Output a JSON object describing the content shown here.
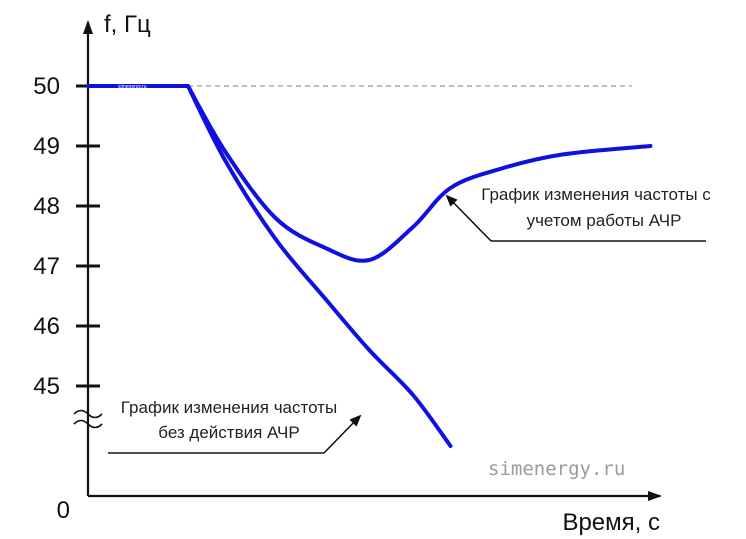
{
  "chart_data": {
    "type": "line",
    "ylabel": "f, Гц",
    "xlabel": "Время, с",
    "origin_label": "0",
    "y_ticks": [
      50,
      49,
      48,
      47,
      46,
      45
    ],
    "ylim": [
      44,
      51
    ],
    "reference_line_value": 50,
    "series": [
      {
        "label_lines": [
          "График изменения частоты с",
          "учетом работы АЧР"
        ],
        "color": "#1010e0",
        "x": [
          0.0,
          1.6,
          2.2,
          3.0,
          3.8,
          4.5,
          5.2,
          5.8,
          6.6,
          7.6,
          9.0
        ],
        "y": [
          50.0,
          50.0,
          48.9,
          47.8,
          47.3,
          47.1,
          47.65,
          48.3,
          48.62,
          48.86,
          49.0
        ]
      },
      {
        "label_lines": [
          "График изменения частоты",
          "без действия АЧР"
        ],
        "color": "#1010e0",
        "x": [
          0.0,
          1.6,
          2.2,
          3.0,
          3.8,
          4.5,
          5.2,
          5.8
        ],
        "y": [
          50.0,
          50.0,
          48.75,
          47.45,
          46.45,
          45.6,
          44.85,
          44.0
        ]
      }
    ],
    "watermark": "simenergy.ru",
    "watermark_small": "simenergy.ru"
  }
}
